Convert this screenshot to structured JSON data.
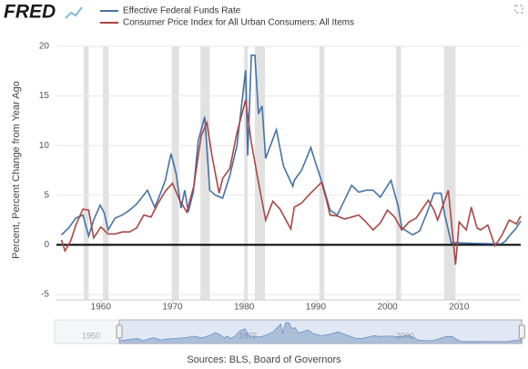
{
  "logo": "FRED",
  "chart_data": {
    "type": "line",
    "y_label": "Percent, Percent Change from Year Ago",
    "source": "Sources: BLS, Board of Governors",
    "xlim": [
      1953.8,
      2018.6
    ],
    "ylim": [
      -5,
      20
    ],
    "xticks": [
      1960,
      1970,
      1980,
      1990,
      2000,
      2010
    ],
    "yticks": [
      -5,
      0,
      5,
      10,
      15,
      20
    ],
    "grid": true,
    "recessions": [
      [
        1957.6,
        1958.3
      ],
      [
        1960.3,
        1961.1
      ],
      [
        1969.9,
        1970.9
      ],
      [
        1973.9,
        1975.2
      ],
      [
        1980.0,
        1980.5
      ],
      [
        1981.5,
        1982.9
      ],
      [
        1990.5,
        1991.2
      ],
      [
        2001.2,
        2001.9
      ],
      [
        2007.9,
        2009.5
      ]
    ],
    "series": [
      {
        "name": "Effective Federal Funds Rate",
        "color": "#4572a7",
        "x": [
          1954.5,
          1955.5,
          1956.5,
          1957.5,
          1958.3,
          1959.0,
          1959.9,
          1960.5,
          1961.0,
          1962,
          1963,
          1964,
          1965,
          1966.5,
          1967.5,
          1968,
          1969,
          1969.8,
          1970.5,
          1971.2,
          1971.7,
          1972.2,
          1972.9,
          1973.6,
          1974.5,
          1975.2,
          1976,
          1977,
          1978,
          1979,
          1980.2,
          1980.5,
          1981.0,
          1981.5,
          1982.0,
          1982.5,
          1983,
          1984.5,
          1985.5,
          1986.8,
          1987,
          1988,
          1989.3,
          1990,
          1991,
          1992,
          1993,
          1994,
          1995,
          1996,
          1997,
          1998,
          1999,
          2000.5,
          2001.5,
          2002,
          2003.5,
          2004.5,
          2005.5,
          2006.5,
          2007.5,
          2008,
          2008.9,
          2010,
          2012,
          2015.9,
          2016.5,
          2017,
          2018,
          2018.6
        ],
        "values": [
          1.0,
          1.7,
          2.7,
          3.0,
          0.9,
          2.5,
          4.0,
          3.2,
          1.5,
          2.7,
          3.0,
          3.5,
          4.1,
          5.5,
          3.8,
          4.6,
          6.5,
          9.2,
          7.2,
          3.7,
          5.5,
          3.3,
          5.3,
          10.5,
          12.9,
          5.5,
          5.0,
          4.7,
          7.0,
          10.0,
          17.6,
          9.0,
          19.1,
          19.1,
          13.2,
          14.0,
          8.7,
          11.6,
          7.9,
          5.9,
          6.5,
          7.5,
          9.8,
          8.2,
          6.0,
          3.5,
          3.0,
          4.5,
          6.0,
          5.3,
          5.5,
          5.5,
          4.8,
          6.5,
          3.9,
          1.7,
          1.0,
          1.4,
          3.2,
          5.2,
          5.2,
          3.0,
          0.2,
          0.2,
          0.15,
          0.1,
          0.4,
          0.9,
          1.7,
          2.4
        ]
      },
      {
        "name": "Consumer Price Index for All Urban Consumers: All Items",
        "color": "#aa4643",
        "x": [
          1954.5,
          1955,
          1955.8,
          1956.5,
          1957.5,
          1958.3,
          1959,
          1960,
          1961,
          1962,
          1963,
          1964,
          1965,
          1966,
          1967,
          1968,
          1969,
          1970,
          1971,
          1972,
          1973,
          1974,
          1974.8,
          1975.5,
          1976.5,
          1977,
          1978,
          1979,
          1980.2,
          1981,
          1982,
          1983,
          1984,
          1985,
          1986.5,
          1987,
          1988,
          1989,
          1990.8,
          1991.5,
          1992,
          1993,
          1994,
          1995,
          1996,
          1997,
          1998,
          1999,
          2000,
          2001,
          2002,
          2003,
          2004,
          2005.7,
          2006.5,
          2007,
          2008.5,
          2009.5,
          2010,
          2011,
          2011.7,
          2012.5,
          2013,
          2014,
          2015,
          2016,
          2017,
          2018,
          2018.6
        ],
        "values": [
          0.5,
          -0.6,
          0.4,
          2.0,
          3.6,
          3.5,
          0.7,
          1.8,
          1.1,
          1.1,
          1.3,
          1.3,
          1.7,
          3.0,
          2.8,
          4.2,
          5.4,
          6.2,
          4.5,
          3.3,
          6.0,
          11.0,
          12.3,
          9.0,
          5.2,
          6.7,
          7.7,
          11.3,
          14.6,
          10.3,
          6.3,
          2.5,
          4.4,
          3.6,
          1.6,
          3.8,
          4.2,
          5.0,
          6.3,
          4.5,
          3.0,
          2.9,
          2.6,
          2.8,
          3.0,
          2.3,
          1.5,
          2.2,
          3.5,
          2.8,
          1.5,
          2.3,
          2.7,
          4.5,
          3.5,
          2.5,
          5.5,
          -2.0,
          2.3,
          1.5,
          3.8,
          1.7,
          1.5,
          2.0,
          -0.1,
          1.0,
          2.5,
          2.1,
          2.9
        ]
      }
    ],
    "navigator": {
      "xticks": [
        1950,
        1975,
        2000
      ]
    }
  }
}
